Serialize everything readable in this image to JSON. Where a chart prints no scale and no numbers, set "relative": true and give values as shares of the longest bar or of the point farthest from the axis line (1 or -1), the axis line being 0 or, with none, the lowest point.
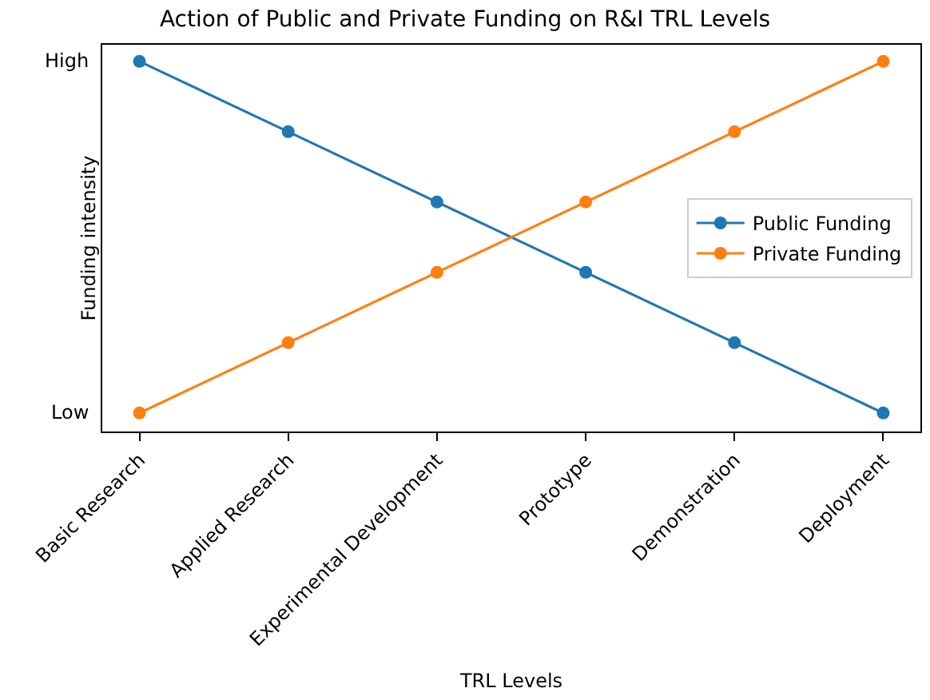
{
  "chart_data": {
    "type": "line",
    "title": "Action of Public and Private Funding on R&I TRL Levels",
    "xlabel": "TRL Levels",
    "ylabel": "Funding intensity",
    "categories": [
      "Basic Research",
      "Applied Research",
      "Experimental Development",
      "Prototype",
      "Demonstration",
      "Deployment"
    ],
    "series": [
      {
        "name": "Public Funding",
        "color": "#1f77b4",
        "values": [
          1,
          0.81,
          0.62,
          0.43,
          0.24,
          0.05
        ]
      },
      {
        "name": "Private Funding",
        "color": "#ff7f0e",
        "values": [
          0.05,
          0.24,
          0.43,
          0.62,
          0.81,
          1
        ]
      }
    ],
    "relative": true,
    "annotations": [
      "Low",
      "High"
    ],
    "legend": "right",
    "marker": "circle",
    "line_style": "solid"
  }
}
